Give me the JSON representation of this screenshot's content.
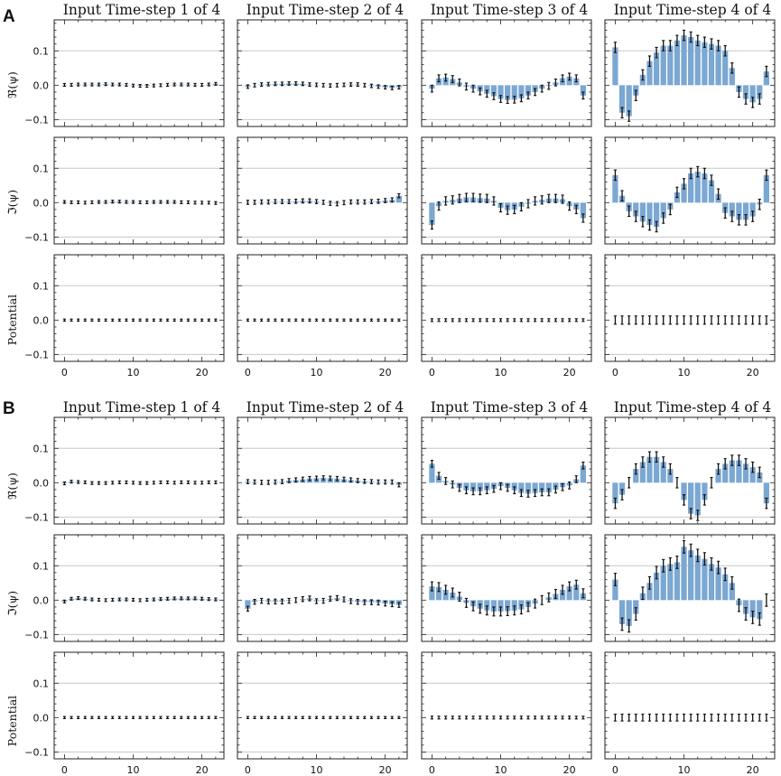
{
  "figure": {
    "panel_A": "A",
    "panel_B": "B",
    "column_titles": [
      "Input Time-step 1 of 4",
      "Input Time-step 2 of 4",
      "Input Time-step 3 of 4",
      "Input Time-step 4 of 4"
    ],
    "row_labels_A": [
      "ℜ(ψ)",
      "ℑ(ψ)",
      "Potential"
    ],
    "row_labels_B": [
      "ℜ(ψ)",
      "ℑ(ψ)",
      "Potential"
    ],
    "y_ticks": [
      "0.1",
      "0.0",
      "−0.1"
    ],
    "x_ticks": [
      "0",
      "10",
      "20"
    ]
  },
  "colors": {
    "bar": "#7ba7d3",
    "error": "#111111",
    "grid": "#c8c8c8",
    "axes": "#222222"
  },
  "chart_data": {
    "type": "bar",
    "description": "24 grid of bar charts with error bars; x = site index 0..22, y = amplitude",
    "x": [
      0,
      1,
      2,
      3,
      4,
      5,
      6,
      7,
      8,
      9,
      10,
      11,
      12,
      13,
      14,
      15,
      16,
      17,
      18,
      19,
      20,
      21,
      22
    ],
    "xlim": [
      -1.5,
      23.2
    ],
    "ylim": [
      -0.12,
      0.19
    ],
    "yticks": [
      0.1,
      0.0,
      -0.1
    ],
    "xticks": [
      0,
      10,
      20
    ],
    "grid": "horizontal at y=±0.1",
    "panels": {
      "A": {
        "real": [
          {
            "values": [
              0.001,
              0.001,
              0.002,
              0.002,
              0.002,
              0.002,
              0.003,
              0.002,
              0.002,
              0.001,
              -0.001,
              -0.002,
              -0.002,
              -0.001,
              0.0,
              0.001,
              0.002,
              0.002,
              0.002,
              0.001,
              0.001,
              0.002,
              0.004
            ],
            "err": 0.004
          },
          {
            "values": [
              -0.004,
              0.0,
              0.002,
              0.003,
              0.004,
              0.004,
              0.005,
              0.005,
              0.004,
              0.002,
              0.001,
              0.0,
              -0.001,
              0.0,
              0.001,
              0.002,
              0.002,
              0.0,
              -0.002,
              -0.004,
              -0.006,
              -0.008,
              -0.006
            ],
            "err": 0.005
          },
          {
            "values": [
              -0.01,
              0.02,
              0.022,
              0.018,
              0.008,
              -0.004,
              -0.01,
              -0.018,
              -0.025,
              -0.032,
              -0.04,
              -0.043,
              -0.042,
              -0.038,
              -0.03,
              -0.02,
              -0.01,
              -0.002,
              0.008,
              0.02,
              0.025,
              0.02,
              -0.03
            ],
            "err": 0.01
          },
          {
            "values": [
              0.11,
              -0.08,
              -0.09,
              -0.03,
              0.03,
              0.07,
              0.095,
              0.115,
              0.115,
              0.13,
              0.145,
              0.14,
              0.13,
              0.125,
              0.12,
              0.115,
              0.1,
              0.05,
              -0.02,
              -0.04,
              -0.05,
              -0.04,
              0.04
            ],
            "err": 0.015
          }
        ],
        "imag": [
          {
            "values": [
              0.002,
              0.001,
              0.001,
              0.0,
              0.001,
              0.002,
              0.002,
              0.003,
              0.003,
              0.002,
              0.002,
              0.001,
              0.001,
              0.002,
              0.002,
              0.002,
              0.002,
              0.001,
              0.001,
              0.0,
              0.0,
              0.0,
              -0.001
            ],
            "err": 0.004
          },
          {
            "values": [
              0.001,
              0.001,
              0.002,
              0.002,
              0.003,
              0.003,
              0.003,
              0.004,
              0.005,
              0.005,
              0.003,
              0.001,
              -0.002,
              -0.003,
              0.0,
              0.002,
              0.002,
              0.002,
              0.003,
              0.004,
              0.006,
              0.008,
              0.02
            ],
            "err": 0.006
          },
          {
            "values": [
              -0.065,
              -0.01,
              0.005,
              0.008,
              0.012,
              0.015,
              0.015,
              0.013,
              0.012,
              0.005,
              -0.015,
              -0.022,
              -0.02,
              -0.012,
              -0.003,
              0.005,
              0.008,
              0.012,
              0.012,
              0.01,
              -0.01,
              -0.02,
              -0.045
            ],
            "err": 0.012
          },
          {
            "values": [
              0.08,
              0.02,
              -0.025,
              -0.04,
              -0.055,
              -0.065,
              -0.07,
              -0.045,
              -0.02,
              0.03,
              0.055,
              0.085,
              0.09,
              0.085,
              0.065,
              0.025,
              -0.03,
              -0.04,
              -0.05,
              -0.05,
              -0.04,
              -0.005,
              0.08
            ],
            "err": 0.015
          }
        ],
        "potential": [
          {
            "values": [
              0,
              0,
              0,
              0,
              0,
              0,
              0,
              0,
              0,
              0,
              0,
              0,
              0,
              0,
              0,
              0,
              0,
              0,
              0,
              0,
              0,
              0,
              0
            ],
            "err": 0.003
          },
          {
            "values": [
              0,
              0,
              0,
              0,
              0,
              0,
              0,
              0,
              0,
              0,
              0,
              0,
              0,
              0,
              0,
              0,
              0,
              0,
              0,
              0,
              0,
              0,
              0
            ],
            "err": 0.003
          },
          {
            "values": [
              0,
              0,
              0,
              0,
              0,
              0,
              0,
              0,
              0,
              0,
              0,
              0,
              0,
              0,
              0,
              0,
              0,
              0,
              0,
              0,
              0,
              0,
              0
            ],
            "err": 0.004
          },
          {
            "values": [
              0,
              0,
              0,
              0,
              0,
              0,
              0,
              0,
              0,
              0,
              0,
              0,
              0,
              0,
              0,
              0,
              0,
              0,
              0,
              0,
              0,
              0,
              0
            ],
            "err": 0.012
          }
        ]
      },
      "B": {
        "real": [
          {
            "values": [
              -0.002,
              0.003,
              0.002,
              0.001,
              -0.001,
              -0.001,
              -0.001,
              0.0,
              0.001,
              0.001,
              0.0,
              -0.001,
              -0.001,
              0.0,
              0.001,
              0.001,
              0.0,
              0.001,
              0.001,
              0.0,
              0.0,
              0.001,
              0.001
            ],
            "err": 0.004
          },
          {
            "values": [
              0.003,
              0.002,
              0.001,
              0.001,
              0.002,
              0.003,
              0.006,
              0.008,
              0.01,
              0.012,
              0.013,
              0.014,
              0.013,
              0.012,
              0.01,
              0.008,
              0.006,
              0.004,
              0.003,
              0.002,
              0.002,
              0.002,
              -0.006
            ],
            "err": 0.006
          },
          {
            "values": [
              0.055,
              0.02,
              0.005,
              -0.005,
              -0.015,
              -0.022,
              -0.025,
              -0.025,
              -0.022,
              -0.018,
              -0.01,
              -0.015,
              -0.022,
              -0.03,
              -0.032,
              -0.03,
              -0.028,
              -0.028,
              -0.02,
              -0.013,
              -0.008,
              0.01,
              0.05
            ],
            "err": 0.01
          },
          {
            "values": [
              -0.06,
              -0.035,
              0.0,
              0.04,
              0.06,
              0.075,
              0.075,
              0.06,
              0.04,
              0.0,
              -0.05,
              -0.09,
              -0.095,
              -0.05,
              0.0,
              0.04,
              0.055,
              0.065,
              0.065,
              0.055,
              0.045,
              0.03,
              -0.06
            ],
            "err": 0.015
          }
        ],
        "imag": [
          {
            "values": [
              -0.004,
              0.004,
              0.006,
              0.004,
              0.002,
              0.001,
              0.0,
              0.001,
              0.002,
              0.002,
              0.001,
              0.0,
              0.001,
              0.002,
              0.003,
              0.004,
              0.005,
              0.005,
              0.005,
              0.005,
              0.004,
              0.003,
              0.002
            ],
            "err": 0.004
          },
          {
            "values": [
              -0.025,
              -0.005,
              -0.002,
              -0.004,
              -0.004,
              -0.004,
              -0.002,
              0.0,
              0.003,
              0.005,
              -0.003,
              -0.002,
              0.004,
              0.006,
              0.002,
              -0.003,
              -0.005,
              -0.006,
              -0.006,
              -0.007,
              -0.01,
              -0.012,
              -0.014
            ],
            "err": 0.007
          },
          {
            "values": [
              0.04,
              0.038,
              0.03,
              0.022,
              0.01,
              -0.008,
              -0.018,
              -0.025,
              -0.03,
              -0.033,
              -0.033,
              -0.032,
              -0.03,
              -0.027,
              -0.02,
              -0.01,
              0.0,
              0.008,
              0.018,
              0.03,
              0.04,
              0.045,
              0.02
            ],
            "err": 0.013
          },
          {
            "values": [
              0.06,
              -0.07,
              -0.075,
              -0.04,
              0.02,
              0.05,
              0.08,
              0.1,
              0.105,
              0.11,
              0.155,
              0.145,
              0.13,
              0.12,
              0.105,
              0.095,
              0.075,
              0.05,
              -0.015,
              -0.04,
              -0.05,
              -0.055,
              0.0
            ],
            "err": 0.018
          }
        ],
        "potential": [
          {
            "values": [
              0,
              0,
              0,
              0,
              0,
              0,
              0,
              0,
              0,
              0,
              0,
              0,
              0,
              0,
              0,
              0,
              0,
              0,
              0,
              0,
              0,
              0,
              0
            ],
            "err": 0.003
          },
          {
            "values": [
              0,
              0,
              0,
              0,
              0,
              0,
              0,
              0,
              0,
              0,
              0,
              0,
              0,
              0,
              0,
              0,
              0,
              0,
              0,
              0,
              0,
              0,
              0
            ],
            "err": 0.003
          },
          {
            "values": [
              0,
              0,
              0,
              0,
              0,
              0,
              0,
              0,
              0,
              0,
              0,
              0,
              0,
              0,
              0,
              0,
              0,
              0,
              0,
              0,
              0,
              0,
              0
            ],
            "err": 0.004
          },
          {
            "values": [
              0,
              0,
              0,
              0,
              0,
              0,
              0,
              0,
              0,
              0,
              0,
              0,
              0,
              0,
              0,
              0,
              0,
              0,
              0,
              0,
              0,
              0,
              0
            ],
            "err": 0.01
          }
        ]
      }
    }
  }
}
